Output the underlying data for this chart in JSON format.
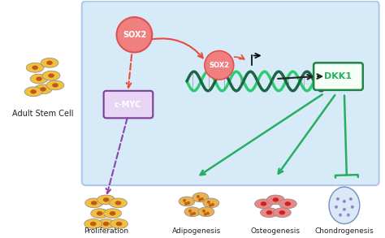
{
  "bg_color": "#ffffff",
  "box_color": "#d6eaf8",
  "box_border": "#aec6e8",
  "title": "",
  "labels": {
    "adult_stem_cell": "Adult Stem Cell",
    "sox2_top": "SOX2",
    "sox2_dna": "SOX2",
    "cmyc": "c-MYC",
    "dkk1": "DKK1",
    "proliferation": "Proliferation",
    "adipogenesis": "Adipogenesis",
    "osteogenesis": "Osteogenesis",
    "chondrogenesis": "Chondrogenesis"
  },
  "colors": {
    "sox2_fill": "#f08080",
    "sox2_border": "#e05050",
    "cmyc_fill": "#9b59b6",
    "cmyc_border": "#7d3c98",
    "dkk1_fill": "#27ae60",
    "dkk1_border": "#1e8449",
    "arrow_red": "#e74c3c",
    "arrow_purple": "#8e44ad",
    "arrow_green": "#27ae60",
    "arrow_black": "#222222",
    "dna_color1": "#2ecc71",
    "dna_color2": "#1a6644",
    "cell_yellow_fill": "#f0c040",
    "cell_red_fill": "#e07070",
    "cell_blue_fill": "#aab8d8"
  }
}
